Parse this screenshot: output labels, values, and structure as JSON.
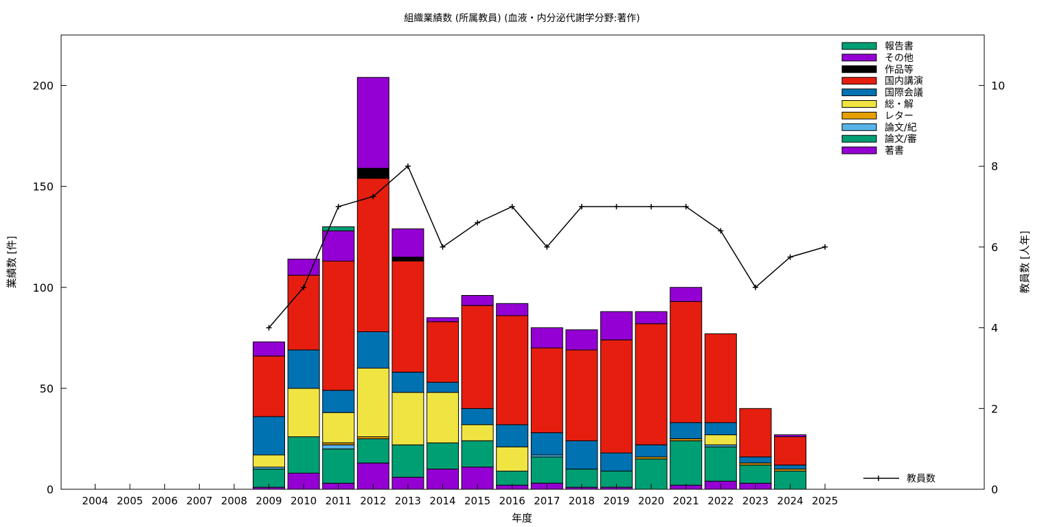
{
  "chart_data": {
    "type": "bar",
    "stacked": true,
    "title": "組織業績数 (所属教員) (血液・内分泌代謝学分野:著作)",
    "xlabel": "年度",
    "ylabel": "業績数 [件]",
    "y2label": "教員数 [人年]",
    "ylim": [
      0,
      225
    ],
    "y2lim": [
      0,
      11.25
    ],
    "yticks": [
      "0",
      "50",
      "100",
      "150",
      "200"
    ],
    "y2ticks": [
      "0",
      "2",
      "4",
      "6",
      "8",
      "10"
    ],
    "grid": false,
    "legend_position": "top-right",
    "categories": [
      "2004",
      "2005",
      "2006",
      "2007",
      "2008",
      "2009",
      "2010",
      "2011",
      "2012",
      "2013",
      "2014",
      "2015",
      "2016",
      "2017",
      "2018",
      "2019",
      "2020",
      "2021",
      "2022",
      "2023",
      "2024",
      "2025"
    ],
    "series": [
      {
        "name": "著書",
        "color": "#9400d3",
        "values": [
          0,
          0,
          0,
          0,
          0,
          1,
          8,
          3,
          13,
          6,
          10,
          11,
          2,
          3,
          1,
          1,
          0,
          2,
          4,
          3,
          0,
          0
        ]
      },
      {
        "name": "論文/審",
        "color": "#009e73",
        "values": [
          0,
          0,
          0,
          0,
          0,
          9,
          18,
          17,
          12,
          16,
          13,
          13,
          7,
          13,
          9,
          8,
          15,
          22,
          17,
          9,
          9,
          0
        ]
      },
      {
        "name": "論文/紀",
        "color": "#56b4e9",
        "values": [
          0,
          0,
          0,
          0,
          0,
          1,
          0,
          2,
          0,
          0,
          0,
          0,
          0,
          1,
          0,
          0,
          0,
          0,
          1,
          0,
          0,
          0
        ]
      },
      {
        "name": "レター",
        "color": "#e69f00",
        "values": [
          0,
          0,
          0,
          0,
          0,
          0,
          0,
          1,
          1,
          0,
          0,
          0,
          0,
          0,
          0,
          0,
          1,
          1,
          0,
          1,
          1,
          0
        ]
      },
      {
        "name": "総・解",
        "color": "#f0e442",
        "values": [
          0,
          0,
          0,
          0,
          0,
          6,
          24,
          15,
          34,
          26,
          25,
          8,
          12,
          0,
          0,
          0,
          0,
          0,
          5,
          0,
          0,
          0
        ]
      },
      {
        "name": "国際会議",
        "color": "#0072b2",
        "values": [
          0,
          0,
          0,
          0,
          0,
          19,
          19,
          11,
          18,
          10,
          5,
          8,
          11,
          11,
          14,
          9,
          6,
          8,
          6,
          3,
          2,
          0
        ]
      },
      {
        "name": "国内講演",
        "color": "#e51e10",
        "values": [
          0,
          0,
          0,
          0,
          0,
          30,
          37,
          64,
          76,
          55,
          30,
          51,
          54,
          42,
          45,
          56,
          60,
          60,
          44,
          24,
          14,
          0
        ]
      },
      {
        "name": "作品等",
        "color": "#000000",
        "values": [
          0,
          0,
          0,
          0,
          0,
          0,
          0,
          0,
          5,
          2,
          0,
          0,
          0,
          0,
          0,
          0,
          0,
          0,
          0,
          0,
          0,
          0
        ]
      },
      {
        "name": "その他",
        "color": "#9400d3",
        "values": [
          0,
          0,
          0,
          0,
          0,
          7,
          8,
          15,
          45,
          14,
          2,
          5,
          6,
          10,
          10,
          14,
          6,
          7,
          0,
          0,
          1,
          0
        ]
      },
      {
        "name": "報告書",
        "color": "#009e73",
        "values": [
          0,
          0,
          0,
          0,
          0,
          0,
          0,
          2,
          0,
          0,
          0,
          0,
          0,
          0,
          0,
          0,
          0,
          0,
          0,
          0,
          0,
          0
        ]
      }
    ],
    "line": {
      "name": "教員数",
      "color": "#000000",
      "x": [
        "2009",
        "2010",
        "2011",
        "2012",
        "2013",
        "2014",
        "2015",
        "2016",
        "2017",
        "2018",
        "2019",
        "2020",
        "2021",
        "2022",
        "2023",
        "2024",
        "2025"
      ],
      "values": [
        4,
        5,
        7,
        7.25,
        8,
        6,
        6.6,
        7,
        6,
        7,
        7,
        7,
        7,
        6.4,
        5,
        5.75,
        6
      ]
    }
  }
}
